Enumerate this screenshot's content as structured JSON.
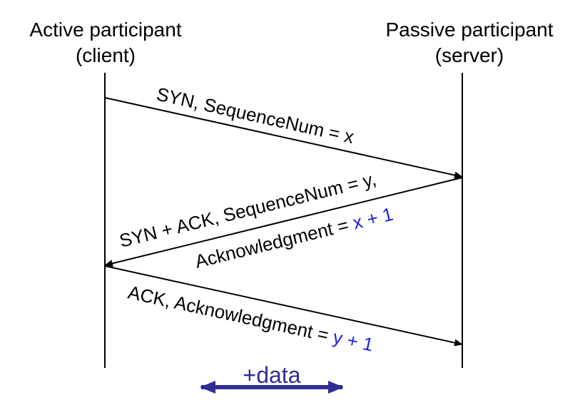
{
  "participants": {
    "client": {
      "title": "Active participant",
      "subtitle": "(client)"
    },
    "server": {
      "title": "Passive participant",
      "subtitle": "(server)"
    }
  },
  "messages": {
    "syn": {
      "text": "SYN, SequenceNum = x"
    },
    "synack": {
      "line1": "SYN + ACK, SequenceNum = y,",
      "line2_prefix": "Acknowledgment = ",
      "line2_value": "x + 1"
    },
    "ack": {
      "prefix": "ACK, Acknowledgment = ",
      "value": "y + 1"
    }
  },
  "data_arrow": {
    "label": "+data"
  },
  "colors": {
    "line": "#000000",
    "highlight": "#1f1fe0",
    "data_arrow": "#2e2e94"
  }
}
